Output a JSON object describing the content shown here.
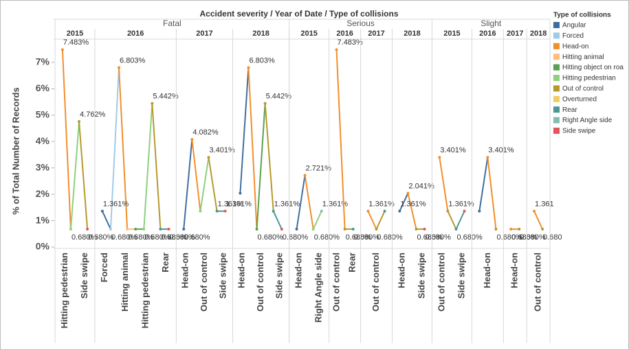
{
  "chart_data": {
    "type": "line",
    "title": "Accident severity / Year of Date / Type of collisions",
    "y_label": "% of Total Number of Records",
    "ylim": [
      0,
      7.7
    ],
    "yticks": [
      {
        "value": 0,
        "label": "0%"
      },
      {
        "value": 1,
        "label": "1%"
      },
      {
        "value": 2,
        "label": "2%"
      },
      {
        "value": 3,
        "label": "3%"
      },
      {
        "value": 4,
        "label": "4%"
      },
      {
        "value": 5,
        "label": "5%"
      },
      {
        "value": 6,
        "label": "6%"
      },
      {
        "value": 7,
        "label": "7%"
      }
    ],
    "legend": {
      "title": "Type of collisions",
      "items": [
        {
          "name": "Angular",
          "color": "#3f6e9e"
        },
        {
          "name": "Forced",
          "color": "#a0cbe8"
        },
        {
          "name": "Head-on",
          "color": "#f28e2b"
        },
        {
          "name": "Hitting animal",
          "color": "#ffbe7d"
        },
        {
          "name": "Hitting object on roa",
          "color": "#59a14f"
        },
        {
          "name": "Hitting pedestrian",
          "color": "#8cd17d"
        },
        {
          "name": "Out of control",
          "color": "#b6992d"
        },
        {
          "name": "Overturned",
          "color": "#f1ce63"
        },
        {
          "name": "Rear",
          "color": "#499894"
        },
        {
          "name": "Right Angle side",
          "color": "#86bcb6"
        },
        {
          "name": "Side swipe",
          "color": "#e15759"
        }
      ]
    },
    "groups": [
      {
        "name": "Fatal",
        "years": [
          {
            "year": "2015",
            "labels": [
              "Hitting pedestrian",
              "Side swipe"
            ],
            "points": [
              {
                "type": 2,
                "value": 7.483,
                "label": "7.483%"
              },
              {
                "type": 5,
                "value": 0.68,
                "label": "0.680%"
              },
              {
                "type": 6,
                "value": 4.762,
                "label": "4.762%"
              },
              {
                "type": 10,
                "value": 0.68,
                "label": "0.680%"
              }
            ]
          },
          {
            "year": "2016",
            "labels": [
              "Forced",
              "Hitting animal",
              "Hitting pedestrian",
              "Rear"
            ],
            "points": [
              {
                "type": 0,
                "value": 1.361,
                "label": "1.361%"
              },
              {
                "type": 1,
                "value": 0.68,
                "label": "0.680%"
              },
              {
                "type": 2,
                "value": 6.803,
                "label": "6.803%"
              },
              {
                "type": 3,
                "value": 0.68,
                "label": "0.680%"
              },
              {
                "type": 4,
                "value": 0.68
              },
              {
                "type": 5,
                "value": 0.68,
                "label": "0.680%"
              },
              {
                "type": 6,
                "value": 5.442,
                "label": "5.442%"
              },
              {
                "type": 8,
                "value": 0.68,
                "label": "0.680%"
              },
              {
                "type": 10,
                "value": 0.68,
                "label": "0.680%"
              }
            ]
          },
          {
            "year": "2017",
            "labels": [
              "Head-on",
              "Out of control",
              "Side swipe"
            ],
            "points": [
              {
                "type": 0,
                "value": 0.68,
                "label": "0.680%"
              },
              {
                "type": 2,
                "value": 4.082,
                "label": "4.082%"
              },
              {
                "type": 5,
                "value": 1.361
              },
              {
                "type": 6,
                "value": 3.401,
                "label": "3.401%"
              },
              {
                "type": 8,
                "value": 1.361,
                "label": "1.361%"
              },
              {
                "type": 10,
                "value": 1.361,
                "label": "1.361%"
              }
            ]
          },
          {
            "year": "2018",
            "labels": [
              "Head-on",
              "Out of control",
              "Side swipe"
            ],
            "points": [
              {
                "type": 0,
                "value": 2.041
              },
              {
                "type": 2,
                "value": 6.803,
                "label": "6.803%"
              },
              {
                "type": 4,
                "value": 0.68,
                "label": "0.680%"
              },
              {
                "type": 6,
                "value": 5.442,
                "label": "5.442%"
              },
              {
                "type": 8,
                "value": 1.361,
                "label": "1.361%"
              },
              {
                "type": 10,
                "value": 0.68,
                "label": "0.680%"
              }
            ]
          }
        ]
      },
      {
        "name": "Serious",
        "years": [
          {
            "year": "2015",
            "labels": [
              "Head-on",
              "Right Angle side"
            ],
            "points": [
              {
                "type": 0,
                "value": 0.68
              },
              {
                "type": 2,
                "value": 2.721,
                "label": "2.721%"
              },
              {
                "type": 5,
                "value": 0.68,
                "label": "0.680%"
              },
              {
                "type": 9,
                "value": 1.361,
                "label": "1.361%"
              }
            ]
          },
          {
            "year": "2016",
            "labels": [
              "Out of control",
              "Rear"
            ],
            "points": [
              {
                "type": 2,
                "value": 7.483,
                "label": "7.483%"
              },
              {
                "type": 6,
                "value": 0.68,
                "label": "0.680%"
              },
              {
                "type": 8,
                "value": 0.68,
                "label": "0.680%"
              }
            ]
          },
          {
            "year": "2017",
            "labels": [
              "Out of control"
            ],
            "points": [
              {
                "type": 2,
                "value": 1.361,
                "label": "1.361%"
              },
              {
                "type": 6,
                "value": 0.68,
                "label": "0.680%"
              },
              {
                "type": 8,
                "value": 1.361
              }
            ]
          },
          {
            "year": "2018",
            "labels": [
              "Head-on",
              "Side swipe"
            ],
            "points": [
              {
                "type": 0,
                "value": 1.361,
                "label": "1.361%"
              },
              {
                "type": 2,
                "value": 2.041,
                "label": "2.041%"
              },
              {
                "type": 6,
                "value": 0.68,
                "label": "0.680%"
              },
              {
                "type": 10,
                "value": 0.68,
                "label": "0.680%"
              }
            ]
          }
        ]
      },
      {
        "name": "Slight",
        "years": [
          {
            "year": "2015",
            "labels": [
              "Out of control",
              "Side swipe"
            ],
            "points": [
              {
                "type": 2,
                "value": 3.401,
                "label": "3.401%"
              },
              {
                "type": 6,
                "value": 1.361,
                "label": "1.361%"
              },
              {
                "type": 8,
                "value": 0.68,
                "label": "0.680%"
              },
              {
                "type": 10,
                "value": 1.361
              }
            ]
          },
          {
            "year": "2016",
            "labels": [
              "Head-on"
            ],
            "points": [
              {
                "type": 0,
                "value": 1.361
              },
              {
                "type": 2,
                "value": 3.401,
                "label": "3.401%"
              },
              {
                "type": 6,
                "value": 0.68,
                "label": "0.680%"
              }
            ]
          },
          {
            "year": "2017",
            "labels": [
              "Head-on"
            ],
            "points": [
              {
                "type": 2,
                "value": 0.68,
                "label": "0.680%"
              },
              {
                "type": 6,
                "value": 0.68,
                "label": "0.680%"
              }
            ]
          },
          {
            "year": "2018",
            "labels": [
              "Out of control"
            ],
            "points": [
              {
                "type": 2,
                "value": 1.361,
                "label": "1.361"
              },
              {
                "type": 6,
                "value": 0.68,
                "label": "0.680"
              }
            ]
          }
        ]
      }
    ]
  }
}
